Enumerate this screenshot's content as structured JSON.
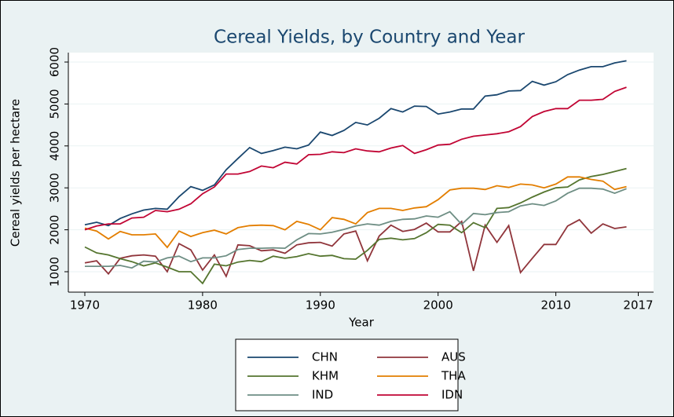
{
  "chart_data": {
    "type": "line",
    "title": "Cereal Yields, by Country and Year",
    "xlabel": "Year",
    "ylabel": "Cereal yields per hectare",
    "x": [
      1970,
      1971,
      1972,
      1973,
      1974,
      1975,
      1976,
      1977,
      1978,
      1979,
      1980,
      1981,
      1982,
      1983,
      1984,
      1985,
      1986,
      1987,
      1988,
      1989,
      1990,
      1991,
      1992,
      1993,
      1994,
      1995,
      1996,
      1997,
      1998,
      1999,
      2000,
      2001,
      2002,
      2003,
      2004,
      2005,
      2006,
      2007,
      2008,
      2009,
      2010,
      2011,
      2012,
      2013,
      2014,
      2015,
      2016
    ],
    "series": [
      {
        "name": "CHN",
        "color": "#1a476f",
        "values": [
          2120,
          2180,
          2100,
          2270,
          2380,
          2470,
          2510,
          2490,
          2790,
          3030,
          2940,
          3070,
          3430,
          3700,
          3960,
          3820,
          3890,
          3970,
          3930,
          4020,
          4330,
          4250,
          4370,
          4560,
          4500,
          4660,
          4890,
          4810,
          4950,
          4940,
          4760,
          4810,
          4880,
          4880,
          5190,
          5220,
          5310,
          5320,
          5540,
          5450,
          5530,
          5700,
          5810,
          5890,
          5890,
          5980,
          6030
        ]
      },
      {
        "name": "AUS",
        "color": "#90353b",
        "values": [
          1210,
          1260,
          950,
          1320,
          1380,
          1400,
          1370,
          1000,
          1670,
          1520,
          1040,
          1400,
          890,
          1640,
          1620,
          1500,
          1520,
          1440,
          1640,
          1690,
          1700,
          1610,
          1900,
          1970,
          1260,
          1850,
          2110,
          1960,
          2010,
          2160,
          1950,
          1950,
          2200,
          1020,
          2110,
          1700,
          2100,
          980,
          1320,
          1650,
          1650,
          2090,
          2240,
          1920,
          2140,
          2030,
          2070
        ]
      },
      {
        "name": "KHM",
        "color": "#55752f",
        "values": [
          1590,
          1450,
          1400,
          1310,
          1240,
          1140,
          1210,
          1110,
          1000,
          1000,
          720,
          1180,
          1140,
          1230,
          1270,
          1240,
          1370,
          1320,
          1360,
          1430,
          1370,
          1390,
          1310,
          1300,
          1510,
          1770,
          1800,
          1760,
          1790,
          1930,
          2130,
          2110,
          1930,
          2170,
          2050,
          2510,
          2530,
          2640,
          2780,
          2900,
          3000,
          3020,
          3190,
          3270,
          3320,
          3390,
          3460
        ]
      },
      {
        "name": "THA",
        "color": "#e37e00",
        "values": [
          2040,
          1970,
          1780,
          1960,
          1880,
          1880,
          1900,
          1580,
          1970,
          1840,
          1930,
          1990,
          1900,
          2050,
          2100,
          2110,
          2100,
          2000,
          2200,
          2130,
          2000,
          2290,
          2250,
          2140,
          2410,
          2510,
          2510,
          2460,
          2520,
          2550,
          2720,
          2950,
          2990,
          2990,
          2960,
          3050,
          3010,
          3090,
          3070,
          3000,
          3090,
          3260,
          3260,
          3200,
          3160,
          2960,
          3030
        ]
      },
      {
        "name": "IND",
        "color": "#6e8e84",
        "values": [
          1130,
          1130,
          1130,
          1150,
          1090,
          1250,
          1230,
          1330,
          1370,
          1240,
          1330,
          1330,
          1380,
          1530,
          1560,
          1560,
          1570,
          1560,
          1760,
          1910,
          1900,
          1940,
          2010,
          2090,
          2140,
          2110,
          2200,
          2250,
          2260,
          2330,
          2300,
          2430,
          2130,
          2390,
          2360,
          2410,
          2430,
          2570,
          2620,
          2580,
          2690,
          2870,
          2990,
          2990,
          2970,
          2870,
          2980
        ]
      },
      {
        "name": "IDN",
        "color": "#c10534",
        "values": [
          2000,
          2090,
          2140,
          2140,
          2280,
          2300,
          2460,
          2430,
          2490,
          2620,
          2860,
          3020,
          3330,
          3330,
          3390,
          3520,
          3480,
          3610,
          3570,
          3790,
          3800,
          3860,
          3840,
          3930,
          3880,
          3860,
          3950,
          4010,
          3820,
          3910,
          4020,
          4040,
          4160,
          4230,
          4260,
          4290,
          4340,
          4460,
          4700,
          4820,
          4890,
          4890,
          5090,
          5090,
          5110,
          5300,
          5400
        ]
      }
    ],
    "xlim": [
      1968.6,
      2018.3
    ],
    "xticks": [
      1970,
      1980,
      1990,
      2000,
      2010,
      2017
    ],
    "ylim": [
      513,
      6225
    ],
    "yticks": [
      1000,
      2000,
      3000,
      4000,
      5000,
      6000
    ],
    "grid": true,
    "legend": "bottom"
  }
}
